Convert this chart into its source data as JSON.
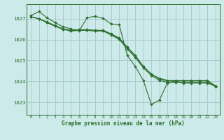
{
  "title": "Graphe pression niveau de la mer (hPa)",
  "background_color": "#cceaea",
  "grid_color": "#aacccc",
  "line_color": "#2d6e2d",
  "marker_color": "#2d6e2d",
  "xlim": [
    -0.5,
    23.5
  ],
  "ylim": [
    1022.4,
    1027.7
  ],
  "yticks": [
    1023,
    1024,
    1025,
    1026,
    1027
  ],
  "xticks": [
    0,
    1,
    2,
    3,
    4,
    5,
    6,
    7,
    8,
    9,
    10,
    11,
    12,
    13,
    14,
    15,
    16,
    17,
    18,
    19,
    20,
    21,
    22,
    23
  ],
  "series": [
    {
      "x": [
        0,
        1,
        2,
        3,
        4,
        5,
        6,
        7,
        8,
        9,
        10,
        11,
        12,
        13,
        14,
        15,
        16,
        17,
        18,
        19,
        20,
        21,
        22,
        23
      ],
      "y": [
        1027.15,
        1027.35,
        1027.05,
        1026.82,
        1026.62,
        1026.52,
        1026.42,
        1027.05,
        1027.12,
        1027.02,
        1026.75,
        1026.72,
        1025.25,
        1024.72,
        1024.05,
        1022.9,
        1023.1,
        1023.92,
        1024.02,
        1023.92,
        1023.92,
        1023.92,
        1023.92,
        1023.78
      ]
    },
    {
      "x": [
        0,
        1,
        2,
        3,
        4,
        5,
        6,
        7,
        8,
        9,
        10,
        11,
        12,
        13,
        14,
        15,
        16,
        17,
        18,
        19,
        20,
        21,
        22,
        23
      ],
      "y": [
        1027.1,
        1027.0,
        1026.82,
        1026.65,
        1026.5,
        1026.42,
        1026.45,
        1026.45,
        1026.42,
        1026.42,
        1026.25,
        1026.05,
        1025.62,
        1025.22,
        1024.72,
        1024.35,
        1024.12,
        1024.02,
        1024.02,
        1024.02,
        1024.02,
        1024.02,
        1024.02,
        1023.78
      ]
    },
    {
      "x": [
        0,
        1,
        2,
        3,
        4,
        5,
        6,
        7,
        8,
        9,
        10,
        11,
        12,
        13,
        14,
        15,
        16,
        17,
        18,
        19,
        20,
        21,
        22,
        23
      ],
      "y": [
        1027.1,
        1027.0,
        1026.82,
        1026.65,
        1026.5,
        1026.42,
        1026.45,
        1026.45,
        1026.42,
        1026.42,
        1026.22,
        1026.02,
        1025.55,
        1025.15,
        1024.65,
        1024.28,
        1024.05,
        1023.95,
        1023.95,
        1023.95,
        1023.95,
        1023.95,
        1023.95,
        1023.75
      ]
    },
    {
      "x": [
        0,
        1,
        2,
        3,
        4,
        5,
        6,
        7,
        8,
        9,
        10,
        11,
        12,
        13,
        14,
        15,
        16,
        17,
        18,
        19,
        20,
        21,
        22,
        23
      ],
      "y": [
        1027.1,
        1027.0,
        1026.85,
        1026.68,
        1026.52,
        1026.45,
        1026.48,
        1026.48,
        1026.45,
        1026.45,
        1026.28,
        1026.08,
        1025.65,
        1025.25,
        1024.72,
        1024.35,
        1024.15,
        1024.05,
        1024.05,
        1024.05,
        1024.05,
        1024.05,
        1024.05,
        1023.78
      ]
    }
  ]
}
